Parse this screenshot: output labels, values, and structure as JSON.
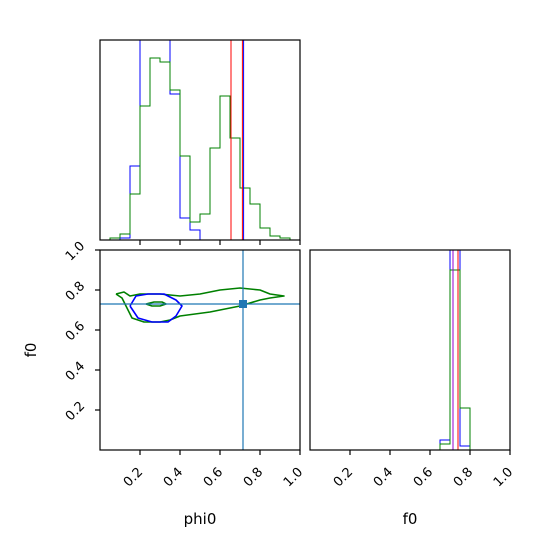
{
  "chart_data": {
    "type": "corner",
    "parameters": [
      "phi0",
      "f0"
    ],
    "truth": {
      "phi0": 0.715,
      "f0": 0.73
    },
    "ticks": {
      "phi0": [
        "0.2",
        "0.4",
        "0.6",
        "0.8",
        "1.0"
      ],
      "f0": [
        "0.2",
        "0.4",
        "0.6",
        "0.8",
        "1.0"
      ]
    },
    "colors": {
      "blue": "#0000ff",
      "green": "#008000",
      "red": "#ff0000",
      "purple": "#9400d3",
      "truth": "#1f77b4"
    },
    "panels": [
      {
        "id": "phi0_hist",
        "type": "step-histogram",
        "xlim": [
          0,
          1
        ],
        "bin_width": 0.05,
        "bin_starts": [
          0.05,
          0.1,
          0.15,
          0.2,
          0.25,
          0.3,
          0.35,
          0.4,
          0.45,
          0.5,
          0.55,
          0.6,
          0.65,
          0.7,
          0.75,
          0.8,
          0.85,
          0.9,
          0.95
        ],
        "series": [
          {
            "name": "",
            "color": "#0000ff",
            "values": [
              0.0,
              0.01,
              0.37,
              1.1,
              1.1,
              1.1,
              0.73,
              0.11,
              0.05,
              0.0,
              0,
              0,
              0,
              0,
              0,
              0,
              0,
              0,
              0
            ]
          },
          {
            "name": "",
            "color": "#008000",
            "values": [
              0.01,
              0.03,
              0.23,
              0.67,
              0.91,
              0.89,
              0.75,
              0.42,
              0.09,
              0.13,
              0.46,
              0.72,
              0.51,
              0.26,
              0.18,
              0.06,
              0.02,
              0.01,
              0.0
            ]
          }
        ],
        "vlines": [
          {
            "x": 0.655,
            "color": "#ff0000"
          },
          {
            "x": 0.712,
            "color": "#ff0000"
          },
          {
            "x": 0.718,
            "color": "#0000ff"
          }
        ]
      },
      {
        "id": "phi0_f0_contour",
        "type": "2d-contour",
        "xlim": [
          0,
          1
        ],
        "ylim": [
          0,
          1
        ],
        "contours": [
          {
            "color": "#008000",
            "points": [
              [
                0.08,
                0.78
              ],
              [
                0.12,
                0.79
              ],
              [
                0.15,
                0.77
              ],
              [
                0.2,
                0.78
              ],
              [
                0.3,
                0.78
              ],
              [
                0.4,
                0.77
              ],
              [
                0.5,
                0.78
              ],
              [
                0.6,
                0.8
              ],
              [
                0.7,
                0.81
              ],
              [
                0.8,
                0.8
              ],
              [
                0.85,
                0.78
              ],
              [
                0.92,
                0.77
              ],
              [
                0.85,
                0.76
              ],
              [
                0.8,
                0.75
              ],
              [
                0.7,
                0.72
              ],
              [
                0.55,
                0.69
              ],
              [
                0.4,
                0.67
              ],
              [
                0.35,
                0.65
              ],
              [
                0.3,
                0.64
              ],
              [
                0.22,
                0.64
              ],
              [
                0.16,
                0.66
              ],
              [
                0.13,
                0.72
              ],
              [
                0.11,
                0.76
              ],
              [
                0.08,
                0.78
              ]
            ]
          },
          {
            "color": "#0000ff",
            "points": [
              [
                0.15,
                0.72
              ],
              [
                0.18,
                0.77
              ],
              [
                0.24,
                0.78
              ],
              [
                0.32,
                0.78
              ],
              [
                0.38,
                0.75
              ],
              [
                0.41,
                0.72
              ],
              [
                0.38,
                0.67
              ],
              [
                0.34,
                0.64
              ],
              [
                0.26,
                0.64
              ],
              [
                0.19,
                0.66
              ],
              [
                0.15,
                0.72
              ]
            ]
          },
          {
            "color": "#008000",
            "points": [
              [
                0.23,
                0.73
              ],
              [
                0.27,
                0.74
              ],
              [
                0.31,
                0.74
              ],
              [
                0.33,
                0.73
              ],
              [
                0.3,
                0.72
              ],
              [
                0.26,
                0.72
              ],
              [
                0.23,
                0.73
              ]
            ]
          }
        ],
        "truth_marker": {
          "x": 0.715,
          "y": 0.73,
          "color": "#1f77b4"
        }
      },
      {
        "id": "f0_hist",
        "type": "step-histogram",
        "xlim": [
          0,
          1
        ],
        "bin_width": 0.05,
        "bin_starts": [
          0.65,
          0.7,
          0.75
        ],
        "series": [
          {
            "name": "",
            "color": "#0000ff",
            "values": [
              0.05,
              1.1,
              0.02
            ]
          },
          {
            "name": "",
            "color": "#008000",
            "values": [
              0.03,
              0.9,
              0.21
            ]
          }
        ],
        "vlines": [
          {
            "x": 0.715,
            "color": "#9400d3"
          },
          {
            "x": 0.74,
            "color": "#ff0000"
          }
        ]
      }
    ]
  },
  "labels": {
    "xlabel_left": "phi0",
    "xlabel_right": "f0",
    "ylabel_left": "f0"
  }
}
